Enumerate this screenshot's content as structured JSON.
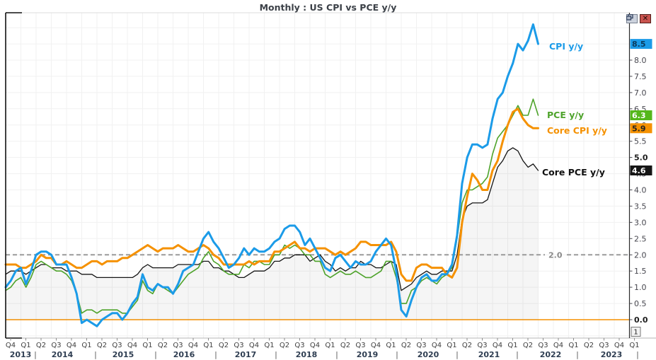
{
  "header": {
    "title": "Monthly : US CPI vs PCE y/y"
  },
  "window_controls": {
    "restore_icon": "overlapping-windows",
    "close_icon": "✕"
  },
  "pane": {
    "number": "1"
  },
  "chart_data": {
    "type": "line",
    "title": "Monthly : US CPI vs PCE y/y",
    "x_unit": "month",
    "x_start": "2013-10",
    "x_end": "2022-07",
    "x_axis_end": "2024-03",
    "quarter_labels": [
      "Q4",
      "Q1",
      "Q2",
      "Q3",
      "Q4",
      "Q1",
      "Q2",
      "Q3",
      "Q4",
      "Q1",
      "Q2",
      "Q3",
      "Q4",
      "Q1",
      "Q2",
      "Q3",
      "Q4",
      "Q1",
      "Q2",
      "Q3",
      "Q4",
      "Q1",
      "Q2",
      "Q3",
      "Q4",
      "Q1",
      "Q2",
      "Q3",
      "Q4",
      "Q1",
      "Q2",
      "Q3",
      "Q4",
      "Q1",
      "Q2",
      "Q3",
      "Q4",
      "Q1",
      "Q2",
      "Q3",
      "Q4",
      "Q1"
    ],
    "year_labels": [
      "2013",
      "2014",
      "2015",
      "2016",
      "2017",
      "2018",
      "2019",
      "2020",
      "2021",
      "2022",
      "2023"
    ],
    "ylim": [
      -0.55,
      9.45
    ],
    "ytick_min": 0.0,
    "ytick_max": 8.0,
    "ytick_step": 0.5,
    "ytick_bold": [
      0.0,
      5.0
    ],
    "grid": true,
    "legend_position": "inline-right",
    "reference_lines": [
      {
        "value": 2.0,
        "label": "2.0",
        "style": "dashed",
        "color": "#9a9a9a"
      },
      {
        "value": 0.0,
        "label": "0.0",
        "style": "solid",
        "color": "#f59100"
      }
    ],
    "series": [
      {
        "name": "CPI y/y",
        "color": "#1b9be8",
        "line_width": 3,
        "last_value": "8.5",
        "badge_bg": "#1b9be8",
        "badge_fg": "#0a3b5e",
        "values": [
          1.0,
          1.2,
          1.5,
          1.6,
          1.1,
          1.5,
          2.0,
          2.1,
          2.1,
          2.0,
          1.7,
          1.7,
          1.7,
          1.3,
          0.8,
          -0.1,
          0.0,
          -0.1,
          -0.2,
          0.0,
          0.1,
          0.2,
          0.2,
          0.0,
          0.2,
          0.5,
          0.7,
          1.4,
          1.0,
          0.9,
          1.1,
          1.0,
          1.0,
          0.8,
          1.1,
          1.5,
          1.6,
          1.7,
          2.1,
          2.5,
          2.7,
          2.4,
          2.2,
          1.9,
          1.6,
          1.7,
          1.9,
          2.2,
          2.0,
          2.2,
          2.1,
          2.1,
          2.2,
          2.4,
          2.5,
          2.8,
          2.9,
          2.9,
          2.7,
          2.3,
          2.5,
          2.2,
          1.9,
          1.6,
          1.5,
          1.9,
          2.0,
          1.8,
          1.6,
          1.8,
          1.7,
          1.7,
          1.8,
          2.1,
          2.3,
          2.5,
          2.3,
          1.5,
          0.3,
          0.1,
          0.6,
          1.0,
          1.3,
          1.4,
          1.2,
          1.2,
          1.4,
          1.4,
          1.7,
          2.6,
          4.2,
          5.0,
          5.4,
          5.4,
          5.3,
          5.4,
          6.2,
          6.8,
          7.0,
          7.5,
          7.9,
          8.5,
          8.3,
          8.6,
          9.1,
          8.5
        ]
      },
      {
        "name": "PCE y/y",
        "color": "#4ea32b",
        "line_width": 1.6,
        "last_value": "6.3",
        "badge_bg": "#55b71b",
        "badge_fg": "#ffffff",
        "values": [
          0.9,
          1.0,
          1.2,
          1.3,
          1.0,
          1.3,
          1.7,
          1.8,
          1.7,
          1.6,
          1.5,
          1.5,
          1.4,
          1.2,
          0.8,
          0.2,
          0.3,
          0.3,
          0.2,
          0.3,
          0.3,
          0.3,
          0.3,
          0.2,
          0.2,
          0.4,
          0.6,
          1.2,
          0.9,
          0.8,
          1.1,
          1.0,
          0.9,
          0.8,
          1.0,
          1.2,
          1.4,
          1.5,
          1.6,
          1.9,
          2.1,
          1.8,
          1.7,
          1.5,
          1.4,
          1.4,
          1.4,
          1.7,
          1.6,
          1.8,
          1.8,
          1.7,
          1.7,
          2.0,
          2.0,
          2.3,
          2.2,
          2.3,
          2.2,
          2.0,
          2.0,
          1.8,
          1.8,
          1.4,
          1.3,
          1.4,
          1.5,
          1.4,
          1.4,
          1.5,
          1.4,
          1.3,
          1.3,
          1.4,
          1.5,
          1.8,
          1.8,
          1.3,
          0.5,
          0.5,
          0.9,
          1.0,
          1.2,
          1.3,
          1.2,
          1.1,
          1.3,
          1.4,
          1.6,
          2.5,
          3.6,
          4.0,
          4.0,
          4.1,
          4.2,
          4.4,
          5.1,
          5.6,
          5.8,
          6.0,
          6.3,
          6.6,
          6.3,
          6.3,
          6.8,
          6.3
        ]
      },
      {
        "name": "Core CPI y/y",
        "color": "#f59100",
        "line_width": 3,
        "last_value": "5.9",
        "badge_bg": "#f59100",
        "badge_fg": "#222222",
        "values": [
          1.7,
          1.7,
          1.7,
          1.6,
          1.6,
          1.7,
          1.8,
          2.0,
          1.9,
          1.9,
          1.7,
          1.7,
          1.8,
          1.7,
          1.6,
          1.6,
          1.7,
          1.8,
          1.8,
          1.7,
          1.8,
          1.8,
          1.8,
          1.9,
          1.9,
          2.0,
          2.1,
          2.2,
          2.3,
          2.2,
          2.1,
          2.2,
          2.2,
          2.2,
          2.3,
          2.2,
          2.1,
          2.1,
          2.2,
          2.3,
          2.2,
          2.0,
          1.9,
          1.7,
          1.7,
          1.7,
          1.7,
          1.7,
          1.8,
          1.7,
          1.8,
          1.8,
          1.8,
          2.1,
          2.1,
          2.2,
          2.3,
          2.4,
          2.2,
          2.2,
          2.1,
          2.2,
          2.2,
          2.2,
          2.1,
          2.0,
          2.1,
          2.0,
          2.1,
          2.2,
          2.4,
          2.4,
          2.3,
          2.3,
          2.3,
          2.3,
          2.4,
          2.1,
          1.4,
          1.2,
          1.2,
          1.6,
          1.7,
          1.7,
          1.6,
          1.6,
          1.6,
          1.4,
          1.3,
          1.6,
          3.0,
          3.8,
          4.5,
          4.3,
          4.0,
          4.0,
          4.6,
          4.9,
          5.5,
          6.0,
          6.4,
          6.5,
          6.2,
          6.0,
          5.9,
          5.9
        ]
      },
      {
        "name": "Core PCE y/y",
        "color": "#151515",
        "line_width": 1.3,
        "last_value": "4.6",
        "badge_bg": "#151515",
        "badge_fg": "#ffffff",
        "fill": "rgba(0,0,0,0.04)",
        "values": [
          1.4,
          1.5,
          1.5,
          1.5,
          1.4,
          1.5,
          1.6,
          1.7,
          1.7,
          1.6,
          1.6,
          1.6,
          1.5,
          1.5,
          1.5,
          1.4,
          1.4,
          1.4,
          1.3,
          1.3,
          1.3,
          1.3,
          1.3,
          1.3,
          1.3,
          1.3,
          1.4,
          1.6,
          1.7,
          1.6,
          1.6,
          1.6,
          1.6,
          1.6,
          1.7,
          1.7,
          1.7,
          1.7,
          1.7,
          1.8,
          1.8,
          1.6,
          1.6,
          1.5,
          1.5,
          1.4,
          1.3,
          1.3,
          1.4,
          1.5,
          1.5,
          1.5,
          1.6,
          1.8,
          1.8,
          1.9,
          1.9,
          2.0,
          2.0,
          2.0,
          1.8,
          1.9,
          2.0,
          1.8,
          1.7,
          1.5,
          1.6,
          1.5,
          1.6,
          1.6,
          1.8,
          1.7,
          1.7,
          1.6,
          1.6,
          1.7,
          1.8,
          1.7,
          0.9,
          1.0,
          1.1,
          1.3,
          1.4,
          1.5,
          1.4,
          1.4,
          1.5,
          1.5,
          1.5,
          2.0,
          3.1,
          3.5,
          3.6,
          3.6,
          3.6,
          3.7,
          4.2,
          4.7,
          4.9,
          5.2,
          5.3,
          5.2,
          4.9,
          4.7,
          4.8,
          4.6
        ]
      }
    ]
  }
}
